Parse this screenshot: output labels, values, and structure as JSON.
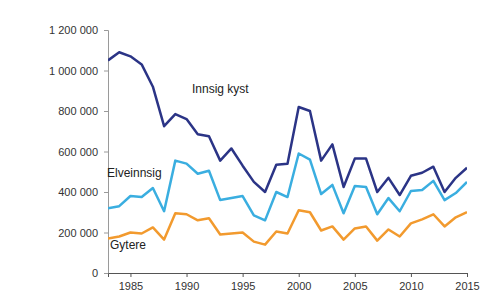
{
  "chart_data": {
    "type": "line",
    "x": [
      1983,
      1984,
      1985,
      1986,
      1987,
      1988,
      1989,
      1990,
      1991,
      1992,
      1993,
      1994,
      1995,
      1996,
      1997,
      1998,
      1999,
      2000,
      2001,
      2002,
      2003,
      2004,
      2005,
      2006,
      2007,
      2008,
      2009,
      2010,
      2011,
      2012,
      2013,
      2014,
      2015
    ],
    "series": [
      {
        "name": "Innsig kyst",
        "color": "#2b3486",
        "values": [
          1050000,
          1090000,
          1070000,
          1030000,
          920000,
          725000,
          785000,
          760000,
          685000,
          675000,
          555000,
          615000,
          530000,
          450000,
          400000,
          535000,
          540000,
          820000,
          800000,
          555000,
          635000,
          425000,
          565000,
          565000,
          400000,
          470000,
          385000,
          480000,
          495000,
          525000,
          400000,
          470000,
          520000
        ]
      },
      {
        "name": "Elveinnsig",
        "color": "#3aaee0",
        "values": [
          320000,
          330000,
          380000,
          375000,
          420000,
          305000,
          555000,
          540000,
          490000,
          505000,
          360000,
          370000,
          380000,
          285000,
          260000,
          400000,
          375000,
          590000,
          560000,
          390000,
          435000,
          295000,
          430000,
          425000,
          290000,
          370000,
          305000,
          405000,
          410000,
          455000,
          360000,
          395000,
          450000
        ]
      },
      {
        "name": "Gytere",
        "color": "#f29a2e",
        "values": [
          170000,
          180000,
          200000,
          195000,
          225000,
          165000,
          295000,
          290000,
          260000,
          270000,
          190000,
          195000,
          200000,
          155000,
          140000,
          205000,
          195000,
          310000,
          300000,
          210000,
          230000,
          165000,
          220000,
          230000,
          160000,
          215000,
          180000,
          245000,
          265000,
          290000,
          230000,
          275000,
          300000
        ]
      }
    ],
    "xlim": [
      1983,
      2015
    ],
    "xticks": [
      1985,
      1990,
      1995,
      2000,
      2005,
      2010,
      2015
    ],
    "ylim": [
      0,
      1200000
    ],
    "yticks": [
      0,
      {
        "value": 200000,
        "label": "200 000"
      },
      {
        "value": 400000,
        "label": "400 000"
      },
      {
        "value": 600000,
        "label": "600 000"
      },
      {
        "value": 800000,
        "label": "800 000"
      },
      {
        "value": 1000000,
        "label": "1 000 000"
      },
      {
        "value": 1200000,
        "label": "1 200 000"
      }
    ],
    "grid": false
  }
}
